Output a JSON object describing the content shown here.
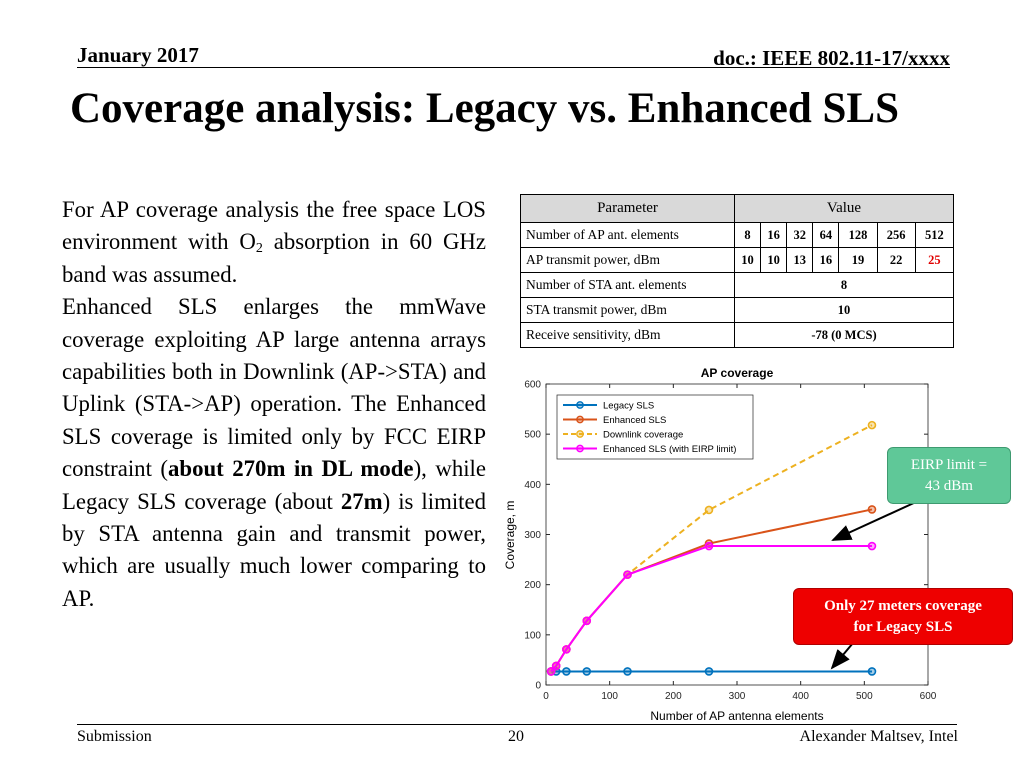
{
  "header": {
    "date": "January 2017",
    "doc_id": "doc.: IEEE 802.11-17/xxxx",
    "title": "Coverage analysis: Legacy vs. Enhanced SLS"
  },
  "body": {
    "para1_main": "For AP coverage analysis the free space LOS environment with O",
    "para1_sub": "2",
    "para1_end": " absorption in 60 GHz band was assumed.",
    "para2_a": "Enhanced SLS enlarges the mmWave coverage exploiting AP large antenna arrays capabilities both in Downlink (AP->STA) and Uplink (STA->AP) operation. The Enhanced SLS coverage is limited only by FCC EIRP constraint (",
    "para2_bold1": "about 270m in DL mode",
    "para2_b": "), while Legacy SLS coverage (about ",
    "para2_bold2": "27m",
    "para2_c": ") is limited by STA antenna gain and transmit power, which are usually much lower comparing to AP."
  },
  "table": {
    "header_param": "Parameter",
    "header_value": "Value",
    "rows": [
      {
        "label": "Number of AP ant. elements",
        "values": [
          "8",
          "16",
          "32",
          "64",
          "128",
          "256",
          "512"
        ]
      },
      {
        "label": "AP transmit power, dBm",
        "values": [
          "10",
          "10",
          "13",
          "16",
          "19",
          "22",
          "25"
        ]
      },
      {
        "label": "Number of STA ant. elements",
        "value": "8"
      },
      {
        "label": "STA transmit power, dBm",
        "value": "10"
      },
      {
        "label": "Receive sensitivity, dBm",
        "value": "-78 (0 MCS)"
      }
    ]
  },
  "colors": {
    "legacy": "#0072bd",
    "enhanced": "#d95319",
    "downlink": "#edb120",
    "eirp": "#ff00ff",
    "highlight_red": "#e00000"
  },
  "chart_data": {
    "type": "line",
    "title": "AP coverage",
    "xlabel": "Number of AP antenna elements",
    "ylabel": "Coverage, m",
    "xlim": [
      0,
      600
    ],
    "ylim": [
      0,
      600
    ],
    "xticks": [
      0,
      100,
      200,
      300,
      400,
      500,
      600
    ],
    "yticks": [
      0,
      100,
      200,
      300,
      400,
      500,
      600
    ],
    "x": [
      8,
      16,
      32,
      64,
      128,
      256,
      512
    ],
    "series": [
      {
        "name": "Legacy SLS",
        "style": "solid",
        "color": "#0072bd",
        "values": [
          27,
          27,
          27,
          27,
          27,
          27,
          27
        ]
      },
      {
        "name": "Enhanced SLS",
        "style": "solid",
        "color": "#d95319",
        "values": [
          27,
          38,
          71,
          128,
          220,
          282,
          350
        ]
      },
      {
        "name": "Downlink coverage",
        "style": "dashed",
        "color": "#edb120",
        "values": [
          27,
          38,
          71,
          128,
          220,
          349,
          518
        ]
      },
      {
        "name": "Enhanced SLS (with EIRP limit)",
        "style": "solid",
        "color": "#ff00ff",
        "values": [
          27,
          38,
          71,
          128,
          220,
          277,
          277
        ]
      }
    ],
    "legend_position": "top-left",
    "grid": false
  },
  "callouts": {
    "eirp_line1": "EIRP limit =",
    "eirp_line2": "43 dBm",
    "legacy_line1": "Only 27 meters coverage",
    "legacy_line2": "for Legacy SLS"
  },
  "footer": {
    "left": "Submission",
    "page": "20",
    "right": "Alexander Maltsev, Intel"
  }
}
